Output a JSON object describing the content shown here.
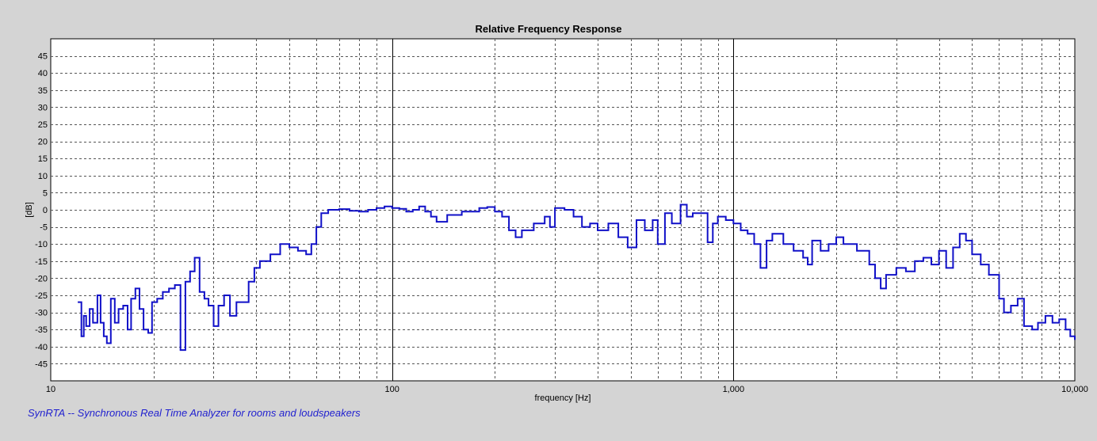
{
  "footer_text": "SynRTA -- Synchronous Real Time Analyzer for rooms and loudspeakers",
  "colors": {
    "background": "#d4d4d4",
    "plot_background": "#ffffff",
    "series": "#1010c8",
    "footer": "#1f1fcf"
  },
  "chart_data": {
    "type": "line",
    "title": "Relative Frequency Response",
    "xlabel": "frequency [Hz]",
    "ylabel": "[dB]",
    "x_scale": "log",
    "xlim": [
      10,
      10000
    ],
    "ylim": [
      -50,
      50
    ],
    "grid": true,
    "x_ticks": [
      10,
      100,
      1000,
      10000
    ],
    "x_tick_labels": [
      "10",
      "100",
      "1,000",
      "10,000"
    ],
    "y_ticks": [
      45,
      40,
      35,
      30,
      25,
      20,
      15,
      10,
      5,
      0,
      -5,
      -10,
      -15,
      -20,
      -25,
      -30,
      -35,
      -40,
      -45
    ],
    "y_tick_labels": [
      "45",
      "40",
      "35",
      "30",
      "25",
      "20",
      "15",
      "10",
      "5",
      "0",
      "-5",
      "-10",
      "-15",
      "-20",
      "-25",
      "-30",
      "-35",
      "-40",
      "-45"
    ],
    "series": [
      {
        "values": [
          [
            12,
            -27
          ],
          [
            12.3,
            -37
          ],
          [
            12.5,
            -31
          ],
          [
            12.7,
            -34
          ],
          [
            13,
            -29
          ],
          [
            13.3,
            -33
          ],
          [
            13.7,
            -25
          ],
          [
            14,
            -33
          ],
          [
            14.3,
            -37
          ],
          [
            14.6,
            -39
          ],
          [
            15,
            -26
          ],
          [
            15.4,
            -33
          ],
          [
            15.8,
            -29
          ],
          [
            16.3,
            -28
          ],
          [
            16.8,
            -35
          ],
          [
            17.2,
            -26
          ],
          [
            17.7,
            -23
          ],
          [
            18.2,
            -29
          ],
          [
            18.7,
            -35
          ],
          [
            19.3,
            -36
          ],
          [
            19.8,
            -27
          ],
          [
            20.5,
            -26
          ],
          [
            21.3,
            -24
          ],
          [
            22.2,
            -23
          ],
          [
            23.1,
            -22
          ],
          [
            24,
            -41
          ],
          [
            24.8,
            -21
          ],
          [
            25.6,
            -18
          ],
          [
            26.4,
            -14
          ],
          [
            27.3,
            -24
          ],
          [
            28.2,
            -26
          ],
          [
            29,
            -28
          ],
          [
            30,
            -34
          ],
          [
            31,
            -28
          ],
          [
            32.2,
            -25
          ],
          [
            33.5,
            -31
          ],
          [
            35,
            -27
          ],
          [
            36.5,
            -27
          ],
          [
            38,
            -21
          ],
          [
            39.5,
            -17
          ],
          [
            41,
            -15
          ],
          [
            44,
            -13
          ],
          [
            47,
            -10
          ],
          [
            50,
            -11
          ],
          [
            53,
            -12
          ],
          [
            56,
            -13
          ],
          [
            58,
            -10
          ],
          [
            60,
            -5
          ],
          [
            62,
            -1
          ],
          [
            65,
            0
          ],
          [
            70,
            0.2
          ],
          [
            75,
            -0.3
          ],
          [
            80,
            -0.5
          ],
          [
            85,
            0
          ],
          [
            90,
            0.5
          ],
          [
            95,
            1
          ],
          [
            100,
            0.5
          ],
          [
            105,
            0.3
          ],
          [
            110,
            -0.5
          ],
          [
            115,
            0
          ],
          [
            120,
            1
          ],
          [
            125,
            -0.5
          ],
          [
            130,
            -2
          ],
          [
            135,
            -3.5
          ],
          [
            145,
            -1.5
          ],
          [
            160,
            -0.5
          ],
          [
            180,
            0.5
          ],
          [
            190,
            0.8
          ],
          [
            200,
            -0.5
          ],
          [
            210,
            -2
          ],
          [
            220,
            -6
          ],
          [
            230,
            -8
          ],
          [
            240,
            -6
          ],
          [
            260,
            -4
          ],
          [
            280,
            -2
          ],
          [
            290,
            -5
          ],
          [
            300,
            0.5
          ],
          [
            320,
            0
          ],
          [
            340,
            -2
          ],
          [
            360,
            -5
          ],
          [
            380,
            -4
          ],
          [
            400,
            -6
          ],
          [
            430,
            -4
          ],
          [
            460,
            -8
          ],
          [
            490,
            -11
          ],
          [
            520,
            -3
          ],
          [
            550,
            -6
          ],
          [
            580,
            -3
          ],
          [
            600,
            -10
          ],
          [
            630,
            -1
          ],
          [
            660,
            -4
          ],
          [
            700,
            1.5
          ],
          [
            730,
            -2
          ],
          [
            760,
            -1
          ],
          [
            800,
            -1
          ],
          [
            840,
            -9.5
          ],
          [
            870,
            -4
          ],
          [
            900,
            -2
          ],
          [
            950,
            -3
          ],
          [
            1000,
            -4
          ],
          [
            1050,
            -6
          ],
          [
            1100,
            -7
          ],
          [
            1150,
            -10
          ],
          [
            1200,
            -17
          ],
          [
            1250,
            -9
          ],
          [
            1300,
            -7
          ],
          [
            1400,
            -10
          ],
          [
            1500,
            -12
          ],
          [
            1600,
            -14
          ],
          [
            1650,
            -16
          ],
          [
            1700,
            -9
          ],
          [
            1800,
            -12
          ],
          [
            1900,
            -10
          ],
          [
            2000,
            -8
          ],
          [
            2100,
            -10
          ],
          [
            2300,
            -12
          ],
          [
            2500,
            -16
          ],
          [
            2600,
            -20
          ],
          [
            2700,
            -23
          ],
          [
            2800,
            -19
          ],
          [
            3000,
            -17
          ],
          [
            3200,
            -18
          ],
          [
            3400,
            -15
          ],
          [
            3600,
            -14
          ],
          [
            3800,
            -16
          ],
          [
            4000,
            -12
          ],
          [
            4200,
            -17
          ],
          [
            4400,
            -11
          ],
          [
            4600,
            -7
          ],
          [
            4800,
            -9
          ],
          [
            5000,
            -13
          ],
          [
            5300,
            -16
          ],
          [
            5600,
            -19
          ],
          [
            6000,
            -26
          ],
          [
            6200,
            -30
          ],
          [
            6500,
            -28
          ],
          [
            6800,
            -26
          ],
          [
            7100,
            -34
          ],
          [
            7500,
            -35
          ],
          [
            7800,
            -33
          ],
          [
            8200,
            -31
          ],
          [
            8600,
            -33
          ],
          [
            9000,
            -32
          ],
          [
            9400,
            -35
          ],
          [
            9700,
            -37
          ],
          [
            10000,
            -38
          ]
        ]
      }
    ]
  }
}
